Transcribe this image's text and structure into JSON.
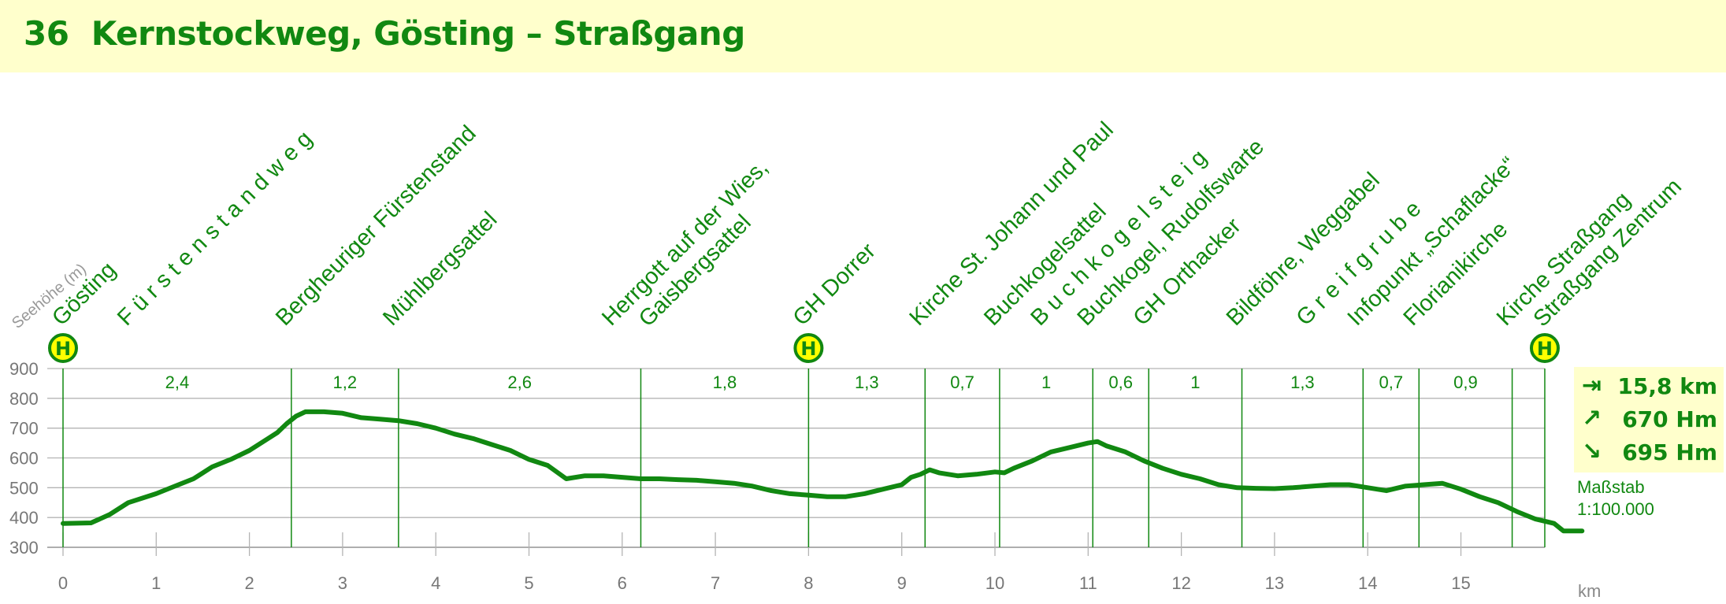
{
  "header": {
    "title": "36  Kernstockweg, Gösting – Straßgang"
  },
  "colors": {
    "accent": "#118811",
    "banner": "#ffffcc",
    "stop_fill": "#ffff00",
    "grid": "#b4b4b4"
  },
  "stop_icon_letter": "H",
  "summary": {
    "distance_icon": "arrow-right-bar-icon",
    "distance": "15,8 km",
    "ascent_icon": "arrow-up-right-icon",
    "ascent": "670 Hm",
    "descent_icon": "arrow-down-right-icon",
    "descent": "695 Hm",
    "scale_label": "Maßstab",
    "scale_value": "1:100.000"
  },
  "chart_data": {
    "type": "area",
    "title": "",
    "ylabel": "Seehöhe (m)",
    "xlabel": "km",
    "xlim": [
      0,
      15.9
    ],
    "ylim": [
      300,
      900
    ],
    "xticks": [
      0,
      1,
      2,
      3,
      4,
      5,
      6,
      7,
      8,
      9,
      10,
      11,
      12,
      13,
      14,
      15
    ],
    "yticks": [
      300,
      400,
      500,
      600,
      700,
      800,
      900
    ],
    "grid": true,
    "profile": [
      [
        0,
        380
      ],
      [
        0.3,
        382
      ],
      [
        0.5,
        410
      ],
      [
        0.7,
        450
      ],
      [
        1.0,
        480
      ],
      [
        1.2,
        505
      ],
      [
        1.4,
        530
      ],
      [
        1.6,
        570
      ],
      [
        1.8,
        595
      ],
      [
        2.0,
        625
      ],
      [
        2.2,
        665
      ],
      [
        2.3,
        685
      ],
      [
        2.4,
        715
      ],
      [
        2.5,
        740
      ],
      [
        2.6,
        755
      ],
      [
        2.8,
        755
      ],
      [
        3.0,
        750
      ],
      [
        3.2,
        735
      ],
      [
        3.4,
        730
      ],
      [
        3.6,
        725
      ],
      [
        3.8,
        715
      ],
      [
        4.0,
        700
      ],
      [
        4.2,
        680
      ],
      [
        4.4,
        665
      ],
      [
        4.6,
        645
      ],
      [
        4.8,
        625
      ],
      [
        5.0,
        595
      ],
      [
        5.2,
        575
      ],
      [
        5.4,
        530
      ],
      [
        5.6,
        540
      ],
      [
        5.8,
        540
      ],
      [
        6.0,
        535
      ],
      [
        6.2,
        530
      ],
      [
        6.4,
        530
      ],
      [
        6.6,
        527
      ],
      [
        6.8,
        525
      ],
      [
        7.0,
        520
      ],
      [
        7.2,
        515
      ],
      [
        7.4,
        505
      ],
      [
        7.6,
        490
      ],
      [
        7.8,
        480
      ],
      [
        8.0,
        475
      ],
      [
        8.2,
        470
      ],
      [
        8.4,
        470
      ],
      [
        8.6,
        480
      ],
      [
        8.8,
        495
      ],
      [
        9.0,
        510
      ],
      [
        9.1,
        535
      ],
      [
        9.2,
        545
      ],
      [
        9.3,
        560
      ],
      [
        9.4,
        550
      ],
      [
        9.6,
        540
      ],
      [
        9.8,
        545
      ],
      [
        10.0,
        553
      ],
      [
        10.1,
        550
      ],
      [
        10.2,
        565
      ],
      [
        10.4,
        590
      ],
      [
        10.6,
        620
      ],
      [
        10.8,
        635
      ],
      [
        11.0,
        650
      ],
      [
        11.1,
        655
      ],
      [
        11.2,
        640
      ],
      [
        11.4,
        620
      ],
      [
        11.6,
        590
      ],
      [
        11.8,
        565
      ],
      [
        12.0,
        545
      ],
      [
        12.2,
        530
      ],
      [
        12.4,
        510
      ],
      [
        12.6,
        500
      ],
      [
        12.8,
        498
      ],
      [
        13.0,
        497
      ],
      [
        13.2,
        500
      ],
      [
        13.4,
        505
      ],
      [
        13.6,
        510
      ],
      [
        13.8,
        510
      ],
      [
        14.0,
        500
      ],
      [
        14.2,
        490
      ],
      [
        14.4,
        505
      ],
      [
        14.6,
        510
      ],
      [
        14.8,
        515
      ],
      [
        15.0,
        495
      ],
      [
        15.2,
        470
      ],
      [
        15.4,
        450
      ],
      [
        15.6,
        420
      ],
      [
        15.8,
        395
      ],
      [
        16.0,
        380
      ],
      [
        16.1,
        355
      ],
      [
        16.3,
        355
      ]
    ],
    "segment_boundaries": [
      2.45,
      3.6,
      6.2,
      8.0,
      9.25,
      10.05,
      11.05,
      11.65,
      12.65,
      13.95,
      14.55,
      15.55
    ],
    "segment_distances": [
      "2,4",
      "1,2",
      "2,6",
      "1,8",
      "1,3",
      "0,7",
      "1",
      "0,6",
      "1",
      "1,3",
      "0,7",
      "0,9"
    ],
    "stop_positions_km": [
      0,
      8.0,
      15.9
    ],
    "waypoints": [
      {
        "km": 0.05,
        "lines": [
          "Gösting"
        ]
      },
      {
        "km": 0.75,
        "lines": [
          "F ü r s t e n s t a n d w e g"
        ]
      },
      {
        "km": 2.45,
        "lines": [
          "Bergheuriger Fürstenstand"
        ]
      },
      {
        "km": 3.6,
        "lines": [
          "Mühlbergsattel"
        ]
      },
      {
        "km": 5.95,
        "lines": [
          "Herrgott auf der Wies,",
          "Gaisbergsattel"
        ]
      },
      {
        "km": 8.0,
        "lines": [
          "GH Dorrer"
        ]
      },
      {
        "km": 9.25,
        "lines": [
          "Kirche St. Johann und Paul"
        ]
      },
      {
        "km": 10.05,
        "lines": [
          "Buchkogelsattel"
        ]
      },
      {
        "km": 10.55,
        "lines": [
          "B u c h k o g e l s t e i g"
        ]
      },
      {
        "km": 11.05,
        "lines": [
          "Buchkogel, Rudolfswarte"
        ]
      },
      {
        "km": 11.65,
        "lines": [
          "GH Orthacker"
        ]
      },
      {
        "km": 12.65,
        "lines": [
          "Bildföhre, Weggabel"
        ]
      },
      {
        "km": 13.4,
        "lines": [
          "G r e i f g r u b e"
        ]
      },
      {
        "km": 13.95,
        "lines": [
          "Infopunkt „Schaflacke“"
        ]
      },
      {
        "km": 14.55,
        "lines": [
          "Florianikirche"
        ]
      },
      {
        "km": 15.55,
        "lines": [
          "Kirche Straßgang",
          "Straßgang Zentrum"
        ]
      }
    ]
  }
}
